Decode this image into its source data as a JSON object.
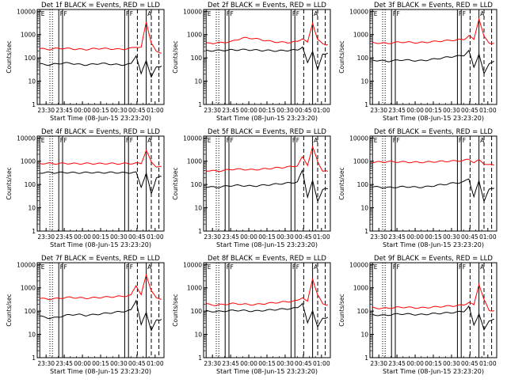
{
  "chart_data": [
    {
      "type": "line",
      "title": "Det 1f BLACK = Events, RED = LLD",
      "xlabel": "Start Time (08-Jun-15 23:23:20)",
      "ylabel": "Counts/sec",
      "x_ticks": [
        "23:30",
        "23:45",
        "00:00",
        "00:15",
        "00:30",
        "00:45",
        "01:00"
      ],
      "y_ticks": [
        "1",
        "10",
        "100",
        "1000",
        "10000"
      ],
      "ylim": [
        1,
        12000
      ],
      "y_scale": "log",
      "markers": [
        "E",
        "F",
        "F",
        "F",
        "F",
        "A"
      ],
      "series": [
        {
          "color": "#ff0000",
          "values": [
            250,
            240,
            235,
            250,
            260,
            255,
            250,
            240,
            235,
            230,
            240,
            250,
            255,
            250,
            245,
            240,
            235,
            245,
            260,
            300,
            280,
            3500,
            450,
            180,
            165
          ]
        },
        {
          "color": "#000000",
          "values": [
            55,
            52,
            50,
            55,
            58,
            60,
            60,
            55,
            52,
            50,
            52,
            55,
            58,
            56,
            54,
            52,
            50,
            52,
            55,
            130,
            20,
            80,
            15,
            40,
            45
          ]
        }
      ]
    },
    {
      "type": "line",
      "title": "Det 2f BLACK = Events, RED = LLD",
      "xlabel": "Start Time (08-Jun-15 23:23:20)",
      "ylabel": "Counts/sec",
      "x_ticks": [
        "23:30",
        "23:45",
        "00:00",
        "00:15",
        "00:30",
        "00:45",
        "01:00"
      ],
      "y_ticks": [
        "1",
        "10",
        "100",
        "1000",
        "10000"
      ],
      "ylim": [
        1,
        12000
      ],
      "y_scale": "log",
      "markers": [
        "E",
        "F",
        "F",
        "F",
        "F",
        "A"
      ],
      "series": [
        {
          "color": "#ff0000",
          "values": [
            420,
            430,
            440,
            450,
            480,
            500,
            600,
            700,
            720,
            700,
            650,
            600,
            550,
            500,
            480,
            470,
            460,
            480,
            500,
            700,
            450,
            3200,
            600,
            400,
            380
          ]
        },
        {
          "color": "#000000",
          "values": [
            200,
            205,
            210,
            210,
            215,
            220,
            220,
            225,
            225,
            220,
            215,
            210,
            210,
            205,
            200,
            205,
            210,
            215,
            220,
            300,
            60,
            200,
            30,
            150,
            160
          ]
        }
      ]
    },
    {
      "type": "line",
      "title": "Det 3f BLACK = Events, RED = LLD",
      "xlabel": "Start Time (08-Jun-15 23:23:20)",
      "ylabel": "Counts/sec",
      "x_ticks": [
        "23:30",
        "23:45",
        "00:00",
        "00:15",
        "00:30",
        "00:45",
        "01:00"
      ],
      "y_ticks": [
        "1",
        "10",
        "100",
        "1000",
        "10000"
      ],
      "ylim": [
        1,
        12000
      ],
      "y_scale": "log",
      "markers": [
        "E",
        "F",
        "F",
        "F",
        "F",
        "A"
      ],
      "series": [
        {
          "color": "#ff0000",
          "values": [
            450,
            440,
            430,
            420,
            450,
            470,
            480,
            470,
            460,
            450,
            460,
            480,
            500,
            520,
            540,
            560,
            580,
            600,
            620,
            900,
            600,
            5000,
            800,
            450,
            420
          ]
        },
        {
          "color": "#000000",
          "values": [
            80,
            78,
            75,
            72,
            75,
            80,
            82,
            80,
            78,
            75,
            78,
            82,
            88,
            95,
            100,
            110,
            115,
            120,
            130,
            200,
            40,
            150,
            20,
            60,
            70
          ]
        }
      ]
    },
    {
      "type": "line",
      "title": "Det 4f BLACK = Events, RED = LLD",
      "xlabel": "Start Time (08-Jun-15 23:23:20)",
      "ylabel": "Counts/sec",
      "x_ticks": [
        "23:30",
        "23:45",
        "00:00",
        "00:15",
        "00:30",
        "00:45",
        "01:00"
      ],
      "y_ticks": [
        "1",
        "10",
        "100",
        "1000",
        "10000"
      ],
      "ylim": [
        1,
        12000
      ],
      "y_scale": "log",
      "markers": [
        "E",
        "F",
        "F",
        "F",
        "F",
        "A"
      ],
      "series": [
        {
          "color": "#ff0000",
          "values": [
            800,
            810,
            800,
            790,
            800,
            810,
            800,
            790,
            790,
            800,
            800,
            790,
            790,
            800,
            800,
            790,
            790,
            800,
            800,
            820,
            800,
            3000,
            900,
            600,
            580
          ]
        },
        {
          "color": "#000000",
          "values": [
            320,
            325,
            330,
            320,
            325,
            330,
            325,
            320,
            320,
            325,
            330,
            325,
            320,
            325,
            330,
            325,
            320,
            320,
            325,
            330,
            80,
            300,
            40,
            200,
            220
          ]
        }
      ]
    },
    {
      "type": "line",
      "title": "Det 5f BLACK = Events, RED = LLD",
      "xlabel": "Start Time (08-Jun-15 23:23:20)",
      "ylabel": "Counts/sec",
      "x_ticks": [
        "23:30",
        "23:45",
        "00:00",
        "00:15",
        "00:30",
        "00:45",
        "01:00"
      ],
      "y_ticks": [
        "1",
        "10",
        "100",
        "1000",
        "10000"
      ],
      "ylim": [
        1,
        12000
      ],
      "y_scale": "log",
      "markers": [
        "E",
        "F",
        "F",
        "F",
        "F",
        "A"
      ],
      "series": [
        {
          "color": "#ff0000",
          "values": [
            400,
            390,
            380,
            390,
            420,
            450,
            460,
            450,
            440,
            430,
            440,
            460,
            480,
            500,
            520,
            540,
            560,
            600,
            650,
            1500,
            700,
            4000,
            1000,
            380,
            360
          ]
        },
        {
          "color": "#000000",
          "values": [
            80,
            78,
            76,
            80,
            85,
            90,
            92,
            90,
            88,
            85,
            88,
            92,
            96,
            100,
            105,
            110,
            115,
            120,
            130,
            400,
            30,
            140,
            20,
            60,
            65
          ]
        }
      ]
    },
    {
      "type": "line",
      "title": "Det 6f BLACK = Events, RED = LLD",
      "xlabel": "Start Time (08-Jun-15 23:23:20)",
      "ylabel": "Counts/sec",
      "x_ticks": [
        "23:30",
        "23:45",
        "00:00",
        "00:15",
        "00:30",
        "00:45",
        "01:00"
      ],
      "y_ticks": [
        "1",
        "10",
        "100",
        "1000",
        "10000"
      ],
      "ylim": [
        1,
        12000
      ],
      "y_scale": "log",
      "markers": [
        "E",
        "F",
        "F",
        "F",
        "F",
        "A"
      ],
      "series": [
        {
          "color": "#ff0000",
          "values": [
            900,
            920,
            950,
            960,
            950,
            940,
            930,
            920,
            910,
            900,
            910,
            930,
            950,
            970,
            990,
            1000,
            1020,
            1050,
            1080,
            1200,
            900,
            1100,
            800,
            700,
            680
          ]
        },
        {
          "color": "#000000",
          "values": [
            80,
            78,
            75,
            74,
            75,
            78,
            80,
            80,
            78,
            76,
            78,
            82,
            88,
            95,
            100,
            108,
            115,
            120,
            130,
            180,
            30,
            140,
            20,
            60,
            70
          ]
        }
      ]
    },
    {
      "type": "line",
      "title": "Det 7f BLACK = Events, RED = LLD",
      "xlabel": "Start Time (08-Jun-15 23:23:20)",
      "ylabel": "Counts/sec",
      "x_ticks": [
        "23:30",
        "23:45",
        "00:00",
        "00:15",
        "00:30",
        "00:45",
        "01:00"
      ],
      "y_ticks": [
        "1",
        "10",
        "100",
        "1000",
        "10000"
      ],
      "ylim": [
        1,
        12000
      ],
      "y_scale": "log",
      "markers": [
        "E",
        "F",
        "F",
        "F",
        "F",
        "A"
      ],
      "series": [
        {
          "color": "#ff0000",
          "values": [
            350,
            340,
            330,
            340,
            360,
            380,
            390,
            380,
            370,
            360,
            370,
            380,
            390,
            400,
            410,
            420,
            430,
            450,
            480,
            1300,
            500,
            3500,
            800,
            350,
            330
          ]
        },
        {
          "color": "#000000",
          "values": [
            60,
            55,
            50,
            52,
            58,
            65,
            70,
            72,
            70,
            66,
            68,
            72,
            76,
            80,
            85,
            90,
            95,
            100,
            110,
            300,
            25,
            90,
            15,
            40,
            45
          ]
        }
      ]
    },
    {
      "type": "line",
      "title": "Det 8f BLACK = Events, RED = LLD",
      "xlabel": "Start Time (08-Jun-15 23:23:20)",
      "ylabel": "Counts/sec",
      "x_ticks": [
        "23:30",
        "23:45",
        "00:00",
        "00:15",
        "00:30",
        "00:45",
        "01:00"
      ],
      "y_ticks": [
        "1",
        "10",
        "100",
        "1000",
        "10000"
      ],
      "ylim": [
        1,
        12000
      ],
      "y_scale": "log",
      "markers": [
        "E",
        "F",
        "F",
        "F",
        "F",
        "A"
      ],
      "series": [
        {
          "color": "#ff0000",
          "values": [
            200,
            190,
            180,
            190,
            200,
            210,
            210,
            200,
            195,
            190,
            195,
            205,
            215,
            225,
            235,
            245,
            255,
            265,
            280,
            400,
            250,
            2500,
            500,
            200,
            190
          ]
        },
        {
          "color": "#000000",
          "values": [
            100,
            98,
            95,
            98,
            102,
            106,
            108,
            106,
            104,
            100,
            102,
            106,
            110,
            114,
            118,
            122,
            126,
            130,
            140,
            220,
            30,
            110,
            20,
            50,
            55
          ]
        }
      ]
    },
    {
      "type": "line",
      "title": "Det 9f BLACK = Events, RED = LLD",
      "xlabel": "Start Time (08-Jun-15 23:23:20)",
      "ylabel": "Counts/sec",
      "x_ticks": [
        "23:30",
        "23:45",
        "00:00",
        "00:15",
        "00:30",
        "00:45",
        "01:00"
      ],
      "y_ticks": [
        "1",
        "10",
        "100",
        "1000",
        "10000"
      ],
      "ylim": [
        1,
        12000
      ],
      "y_scale": "log",
      "markers": [
        "E",
        "F",
        "F",
        "F",
        "F",
        "A"
      ],
      "series": [
        {
          "color": "#ff0000",
          "values": [
            140,
            135,
            130,
            135,
            140,
            145,
            148,
            145,
            142,
            138,
            140,
            145,
            150,
            155,
            160,
            165,
            170,
            175,
            185,
            240,
            180,
            1500,
            300,
            110,
            105
          ]
        },
        {
          "color": "#000000",
          "values": [
            70,
            68,
            66,
            68,
            72,
            75,
            76,
            75,
            73,
            70,
            72,
            75,
            78,
            80,
            82,
            85,
            88,
            92,
            98,
            160,
            25,
            80,
            15,
            40,
            45
          ]
        }
      ]
    }
  ]
}
